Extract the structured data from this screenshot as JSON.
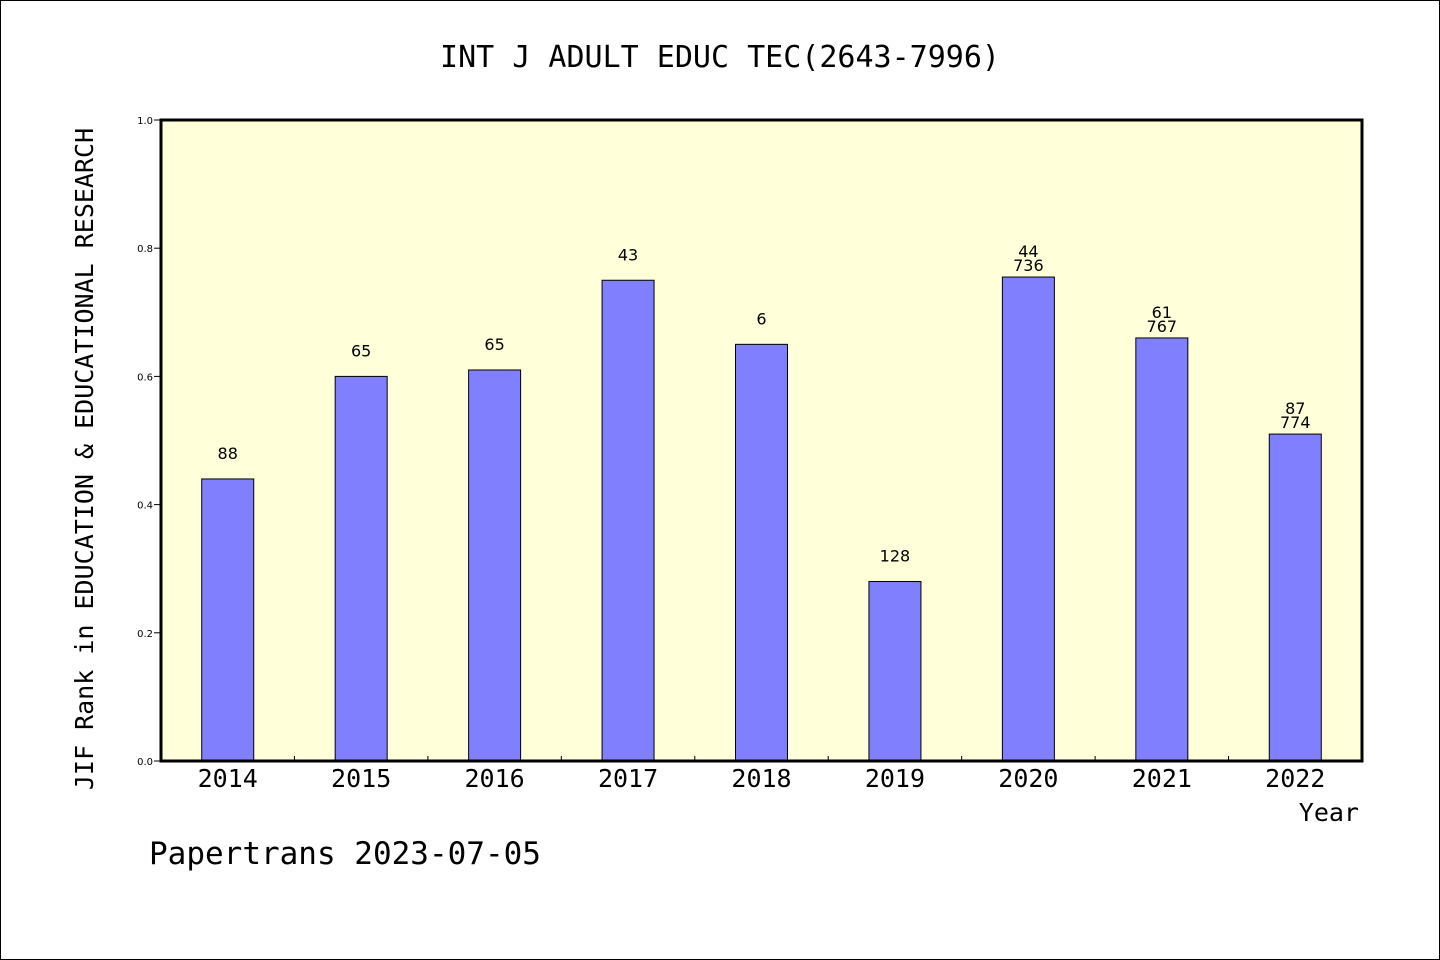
{
  "chart_data": {
    "type": "bar",
    "title": "INT J ADULT EDUC TEC(2643-7996)",
    "xlabel": "Year",
    "ylabel": "JIF Rank in EDUCATION & EDUCATIONAL RESEARCH",
    "ylim": [
      0,
      1.0
    ],
    "yticks": [
      "0.0",
      "0.2",
      "0.4",
      "0.6",
      "0.8",
      "1.0"
    ],
    "grid": false,
    "categories": [
      "2014",
      "2015",
      "2016",
      "2017",
      "2018",
      "2019",
      "2020",
      "2021",
      "2022"
    ],
    "values": [
      0.44,
      0.6,
      0.61,
      0.75,
      0.65,
      0.28,
      0.755,
      0.66,
      0.51
    ],
    "data_labels": [
      [
        "88"
      ],
      [
        "65"
      ],
      [
        "65"
      ],
      [
        "43"
      ],
      [
        "6"
      ],
      [
        "128"
      ],
      [
        "44",
        "736"
      ],
      [
        "61",
        "767"
      ],
      [
        "87",
        "774"
      ]
    ],
    "colors": {
      "plot_background": "#ffffd9",
      "bar_fill": "#8080ff",
      "bar_stroke": "#000000"
    }
  },
  "footer": "Papertrans 2023-07-05"
}
